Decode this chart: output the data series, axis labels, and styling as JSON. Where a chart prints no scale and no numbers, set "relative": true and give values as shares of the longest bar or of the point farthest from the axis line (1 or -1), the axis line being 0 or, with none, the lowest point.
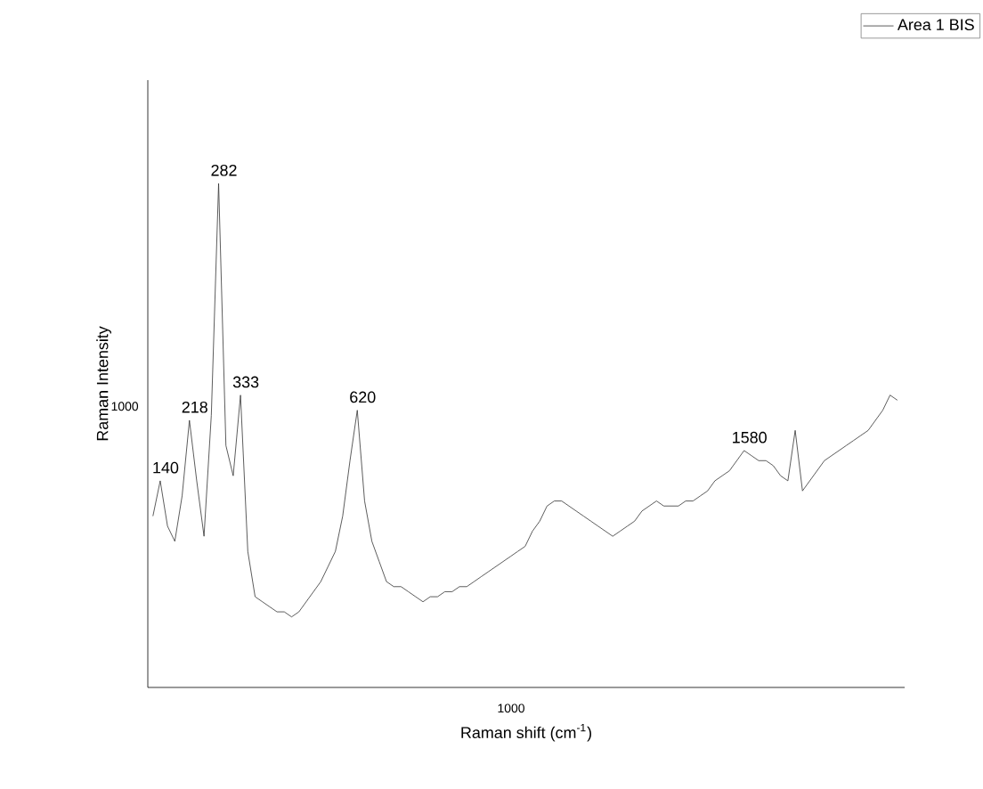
{
  "chart_data": {
    "type": "line",
    "relative": true,
    "xlabel": "Raman shift (cm$^{-1}$)",
    "ylabel": "Raman Intensity",
    "legend": "top right",
    "annotations": [
      "1000",
      "1000",
      {
        "text": "140",
        "y": 0.41
      },
      {
        "text": "218",
        "y": 0.53
      },
      {
        "text": "282",
        "y": 1.0
      },
      {
        "text": "333",
        "y": 0.58
      },
      {
        "text": "620",
        "y": 0.55
      },
      {
        "text": "1580",
        "y": 0.47
      }
    ],
    "categories": [
      null,
      null,
      null,
      null,
      null,
      null,
      null,
      null,
      null,
      null,
      null,
      null,
      null,
      null,
      null,
      null,
      null,
      null,
      null,
      null,
      null,
      null,
      null,
      null,
      null,
      null,
      null,
      null,
      null,
      null,
      null,
      null,
      null,
      null,
      null,
      null,
      null,
      null,
      null,
      null,
      null,
      null,
      null,
      null,
      null,
      null,
      null,
      null,
      null,
      null,
      null,
      null,
      null,
      null,
      null,
      null,
      null,
      null,
      null,
      null,
      null,
      null,
      null,
      null,
      null,
      null,
      null,
      null,
      null,
      null,
      null,
      null,
      null,
      null,
      null,
      null,
      null,
      null,
      null,
      null,
      null,
      null,
      null,
      null,
      null,
      null,
      null,
      null,
      null,
      null,
      null,
      null,
      null,
      null,
      null,
      null,
      null,
      null,
      null,
      null,
      null,
      null,
      null
    ],
    "series": [
      {
        "name": "Area 1 BIS",
        "color": "#333333",
        "values": [
          0.34,
          0.41,
          0.32,
          0.29,
          0.38,
          0.53,
          0.41,
          0.3,
          0.54,
          1.0,
          0.48,
          0.42,
          0.58,
          0.27,
          0.18,
          0.17,
          0.16,
          0.15,
          0.15,
          0.14,
          0.15,
          0.17,
          0.19,
          0.21,
          0.24,
          0.27,
          0.34,
          0.45,
          0.55,
          0.37,
          0.29,
          0.25,
          0.21,
          0.2,
          0.2,
          0.19,
          0.18,
          0.17,
          0.18,
          0.18,
          0.19,
          0.19,
          0.2,
          0.2,
          0.21,
          0.22,
          0.23,
          0.24,
          0.25,
          0.26,
          0.27,
          0.28,
          0.31,
          0.33,
          0.36,
          0.37,
          0.37,
          0.36,
          0.35,
          0.34,
          0.33,
          0.32,
          0.31,
          0.3,
          0.31,
          0.32,
          0.33,
          0.35,
          0.36,
          0.37,
          0.36,
          0.36,
          0.36,
          0.37,
          0.37,
          0.38,
          0.39,
          0.41,
          0.42,
          0.43,
          0.45,
          0.47,
          0.46,
          0.45,
          0.45,
          0.44,
          0.42,
          0.41,
          0.51,
          0.39,
          0.41,
          0.43,
          0.45,
          0.46,
          0.47,
          0.48,
          0.49,
          0.5,
          0.51,
          0.53,
          0.55,
          0.58,
          0.57
        ]
      }
    ]
  }
}
